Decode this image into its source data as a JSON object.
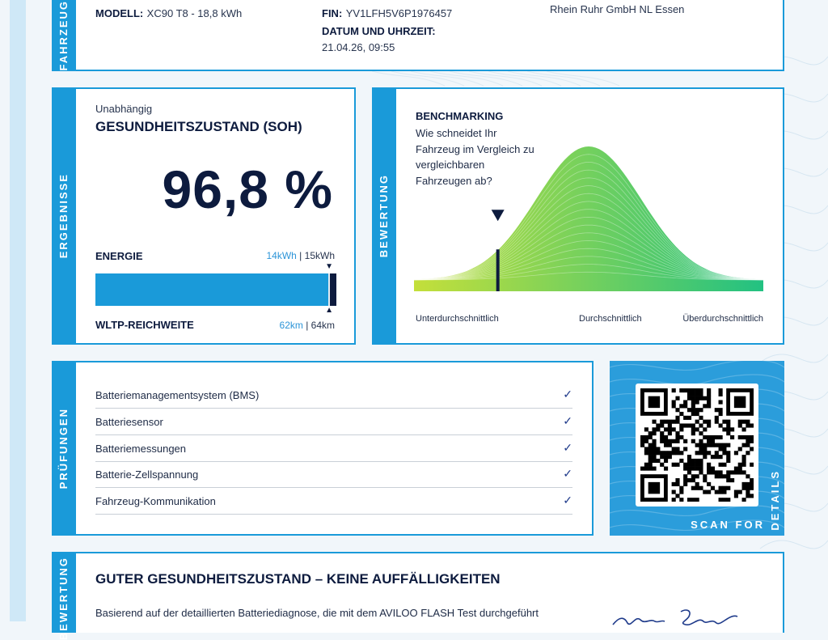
{
  "vehicle": {
    "tab_label": "FAHRZEUG",
    "model_label": "MODELL:",
    "model_value": "XC90 T8 - 18,8 kWh",
    "fin_label": "FIN:",
    "fin_value": "YV1LFH5V6P1976457",
    "date_label": "DATUM UND UHRZEIT:",
    "date_value": "21.04.26, 09:55",
    "dealer_value": "Rhein Ruhr GmbH NL Essen"
  },
  "results": {
    "tab_label": "ERGEBNISSE",
    "subtitle": "Unabhängig",
    "title": "GESUNDHEITSZUSTAND (SOH)",
    "soh_value": "96,8 %",
    "energy_label": "ENERGIE",
    "energy_actual": "14kWh",
    "energy_separator": " | ",
    "energy_nominal": "15kWh",
    "range_label": "WLTP-REICHWEITE",
    "range_actual": "62km",
    "range_nominal": "64km",
    "soh_fraction": 0.968
  },
  "benchmark": {
    "tab_label": "BEWERTUNG",
    "title": "BENCHMARKING",
    "question_line1": "Wie schneidet Ihr",
    "question_line2": "Fahrzeug im Vergleich zu",
    "question_line3": "vergleichbaren",
    "question_line4": "Fahrzeugen ab?",
    "axis_low": "Unterdurchschnittlich",
    "axis_mid": "Durchschnittlich",
    "axis_high": "Überdurchschnittlich",
    "marker_position": 0.24,
    "curve_colors": [
      "#c4df3a",
      "#22c182"
    ]
  },
  "checks": {
    "tab_label": "PRÜFUNGEN",
    "items": [
      "Batteriemanagementsystem (BMS)",
      "Batteriesensor",
      "Batteriemessungen",
      "Batterie-Zellspannung",
      "Fahrzeug-Kommunikation"
    ],
    "check_icon": "✓"
  },
  "qr": {
    "scan_label": "SCAN FOR",
    "details_label": "DETAILS"
  },
  "summary": {
    "tab_label": "BEWERTUNG",
    "title": "GUTER GESUNDHEITSZUSTAND – KEINE AUFFÄLLIGKEITEN",
    "body": "Basierend auf der detaillierten Batteriediagnose, die mit dem AVILOO FLASH Test durchgeführt"
  },
  "colors": {
    "accent": "#1a9ad9",
    "navy": "#0d1b3e",
    "highlight": "#2d95d8"
  }
}
